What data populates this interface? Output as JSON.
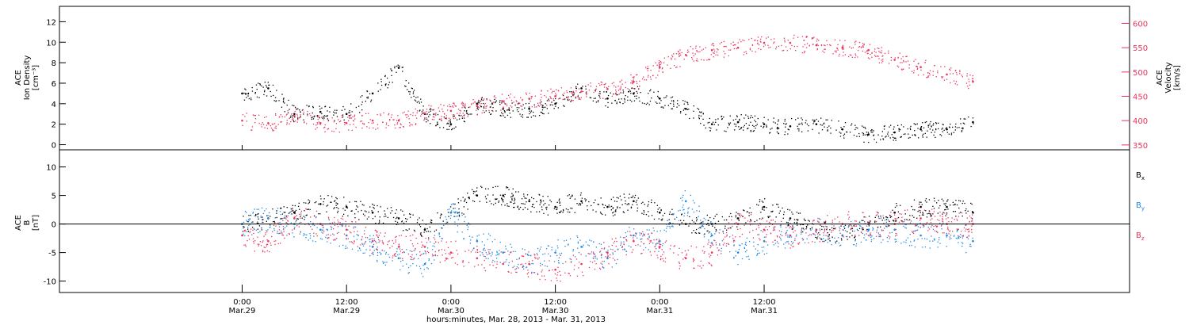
{
  "chart_data": [
    {
      "type": "scatter",
      "panel": "top",
      "left_axis_label": [
        "ACE",
        "Ion Density",
        "[cm⁻³]"
      ],
      "right_axis_label": [
        "ACE",
        "Velocity",
        "[km/s]"
      ],
      "left_ylim": [
        -0.5,
        13.5
      ],
      "left_yticks": [
        0,
        2,
        4,
        6,
        8,
        10,
        12
      ],
      "right_ylim": [
        340,
        635
      ],
      "right_yticks": [
        350,
        400,
        450,
        500,
        550,
        600
      ],
      "series": [
        {
          "color": "#000000",
          "axis": "left",
          "x": [
            0,
            3,
            6,
            9,
            12,
            15,
            18,
            21,
            24,
            27,
            30,
            33,
            36,
            39,
            42,
            45,
            48,
            51,
            54,
            57,
            60,
            63,
            66,
            69,
            72,
            75,
            78,
            81,
            84
          ],
          "values": [
            5.0,
            5.5,
            3.0,
            3.2,
            3.0,
            5.0,
            7.5,
            3.0,
            2.0,
            4.0,
            3.5,
            3.5,
            4.0,
            5.5,
            4.5,
            5.0,
            4.5,
            3.5,
            2.0,
            2.2,
            2.0,
            1.8,
            2.0,
            1.5,
            1.0,
            1.2,
            1.5,
            1.5,
            2.2
          ]
        },
        {
          "color": "#e8345d",
          "axis": "right",
          "x": [
            0,
            3,
            6,
            9,
            12,
            15,
            18,
            21,
            24,
            27,
            30,
            33,
            36,
            39,
            42,
            45,
            48,
            51,
            54,
            57,
            60,
            63,
            66,
            69,
            72,
            75,
            78,
            81,
            84
          ],
          "values": [
            400,
            395,
            410,
            395,
            395,
            400,
            400,
            415,
            420,
            430,
            440,
            445,
            450,
            460,
            465,
            480,
            510,
            535,
            545,
            550,
            560,
            560,
            555,
            550,
            545,
            525,
            510,
            495,
            480
          ]
        }
      ]
    },
    {
      "type": "scatter",
      "panel": "bottom",
      "left_axis_label": [
        "ACE",
        "B",
        "[nT]"
      ],
      "ylim": [
        -12,
        13
      ],
      "yticks": [
        -10,
        -5,
        0,
        5,
        10
      ],
      "zero_line": true,
      "series": [
        {
          "name": "Bx",
          "color": "#000000",
          "x": [
            0,
            3,
            6,
            9,
            12,
            15,
            18,
            21,
            24,
            27,
            30,
            33,
            36,
            39,
            42,
            45,
            48,
            51,
            54,
            57,
            60,
            63,
            66,
            69,
            72,
            75,
            78,
            81,
            84
          ],
          "values": [
            0,
            1,
            2,
            3.5,
            3,
            2,
            1,
            -1,
            2,
            5,
            5,
            4,
            3,
            4,
            3,
            4,
            2,
            0,
            0,
            1,
            3,
            1,
            -1,
            -2,
            0,
            2,
            3,
            3,
            2
          ]
        },
        {
          "name": "By",
          "color": "#1e88e5",
          "x": [
            0,
            3,
            6,
            9,
            12,
            15,
            18,
            21,
            24,
            27,
            30,
            33,
            36,
            39,
            42,
            45,
            48,
            51,
            54,
            57,
            60,
            63,
            66,
            69,
            72,
            75,
            78,
            81,
            84
          ],
          "values": [
            0,
            1,
            0,
            -1,
            -2,
            -4,
            -6,
            -7,
            2,
            -3,
            -5,
            -7,
            -5,
            -4,
            -6,
            -2,
            -3,
            4,
            -2,
            -5,
            -3,
            -2,
            -1,
            -2,
            -1,
            -1,
            -2,
            -2,
            -3
          ]
        },
        {
          "name": "Bz",
          "color": "#e8345d",
          "x": [
            0,
            3,
            6,
            9,
            12,
            15,
            18,
            21,
            24,
            27,
            30,
            33,
            36,
            39,
            42,
            45,
            48,
            51,
            54,
            57,
            60,
            63,
            66,
            69,
            72,
            75,
            78,
            81,
            84
          ],
          "values": [
            -2,
            -3,
            1,
            0,
            -1,
            -3,
            -4,
            -4,
            -5,
            -6,
            -7,
            -7,
            -8,
            -7,
            -5,
            -3,
            -4,
            -6,
            -5,
            0,
            -1,
            -2,
            -1,
            0,
            0,
            0,
            1,
            0,
            0
          ]
        }
      ],
      "legend": [
        "B",
        "B",
        "B"
      ],
      "legend_subscripts": [
        "x",
        "y",
        "z"
      ]
    }
  ],
  "x_axis": {
    "range_hours": [
      -21,
      102
    ],
    "ticks": [
      {
        "x": 0,
        "time": "0:00",
        "date": "Mar.29"
      },
      {
        "x": 12,
        "time": "12:00",
        "date": "Mar.29"
      },
      {
        "x": 24,
        "time": "0:00",
        "date": "Mar.30"
      },
      {
        "x": 36,
        "time": "12:00",
        "date": "Mar.30"
      },
      {
        "x": 48,
        "time": "0:00",
        "date": "Mar.31"
      },
      {
        "x": 60,
        "time": "12:00",
        "date": "Mar.31"
      }
    ],
    "xlabel": "hours:minutes, Mar. 28, 2013 - Mar. 31, 2013"
  }
}
